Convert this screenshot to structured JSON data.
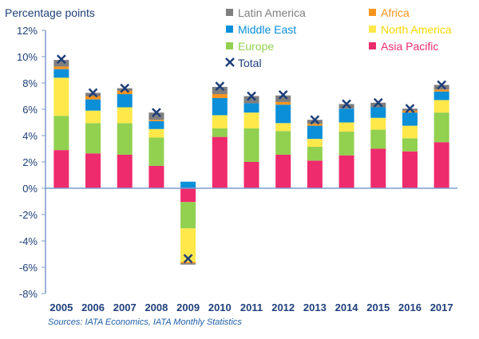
{
  "chart_data": {
    "type": "bar",
    "stacked": true,
    "title": "Percentage points",
    "source": "Sources: IATA Economics, IATA Monthly Statistics",
    "categories": [
      "2005",
      "2006",
      "2007",
      "2008",
      "2009",
      "2010",
      "2011",
      "2012",
      "2013",
      "2014",
      "2015",
      "2016",
      "2017"
    ],
    "ylim": [
      -8,
      12
    ],
    "yticks": [
      -8,
      -6,
      -4,
      -2,
      0,
      2,
      4,
      6,
      8,
      10,
      12
    ],
    "ytick_labels": [
      "-8%",
      "-6%",
      "-4%",
      "-2%",
      "0%",
      "2%",
      "4%",
      "6%",
      "8%",
      "10%",
      "12%"
    ],
    "grid": false,
    "legend_placement": "top-center",
    "series": [
      {
        "name": "Asia Pacific",
        "color": "#ee2b6c",
        "values": [
          2.9,
          2.65,
          2.55,
          1.7,
          -1.05,
          3.9,
          2.0,
          2.55,
          2.1,
          2.5,
          3.0,
          2.8,
          3.5
        ]
      },
      {
        "name": "Europe",
        "color": "#92d050",
        "values": [
          2.6,
          2.3,
          2.4,
          2.15,
          -2.0,
          0.65,
          2.55,
          1.8,
          1.05,
          1.8,
          1.45,
          1.0,
          2.25
        ]
      },
      {
        "name": "North America",
        "color": "#ffe84a",
        "values": [
          2.9,
          0.95,
          1.2,
          0.65,
          -2.55,
          1.0,
          1.2,
          0.6,
          0.6,
          0.7,
          0.9,
          0.95,
          0.95
        ]
      },
      {
        "name": "Middle East",
        "color": "#0a8fd8",
        "values": [
          0.65,
          0.85,
          1.0,
          0.6,
          0.5,
          1.3,
          0.7,
          1.4,
          1.0,
          1.05,
          0.8,
          1.0,
          0.65
        ]
      },
      {
        "name": "Africa",
        "color": "#f7941d",
        "values": [
          0.2,
          0.25,
          0.25,
          0.1,
          -0.1,
          0.3,
          0.0,
          0.2,
          0.15,
          0.0,
          0.0,
          0.15,
          0.15
        ]
      },
      {
        "name": "Latin America",
        "color": "#7f7f7f",
        "values": [
          0.5,
          0.25,
          0.2,
          0.55,
          -0.1,
          0.55,
          0.55,
          0.5,
          0.3,
          0.35,
          0.35,
          0.15,
          0.35
        ]
      }
    ],
    "total": {
      "name": "Total",
      "color": "#1f3f7a",
      "marker": "x",
      "values": [
        9.8,
        7.25,
        7.6,
        5.75,
        -5.35,
        7.75,
        7.0,
        7.1,
        5.2,
        6.4,
        6.5,
        6.05,
        7.85
      ]
    },
    "legend_order": [
      "Latin America",
      "Africa",
      "Middle East",
      "North America",
      "Europe",
      "Asia Pacific",
      "Total"
    ]
  }
}
